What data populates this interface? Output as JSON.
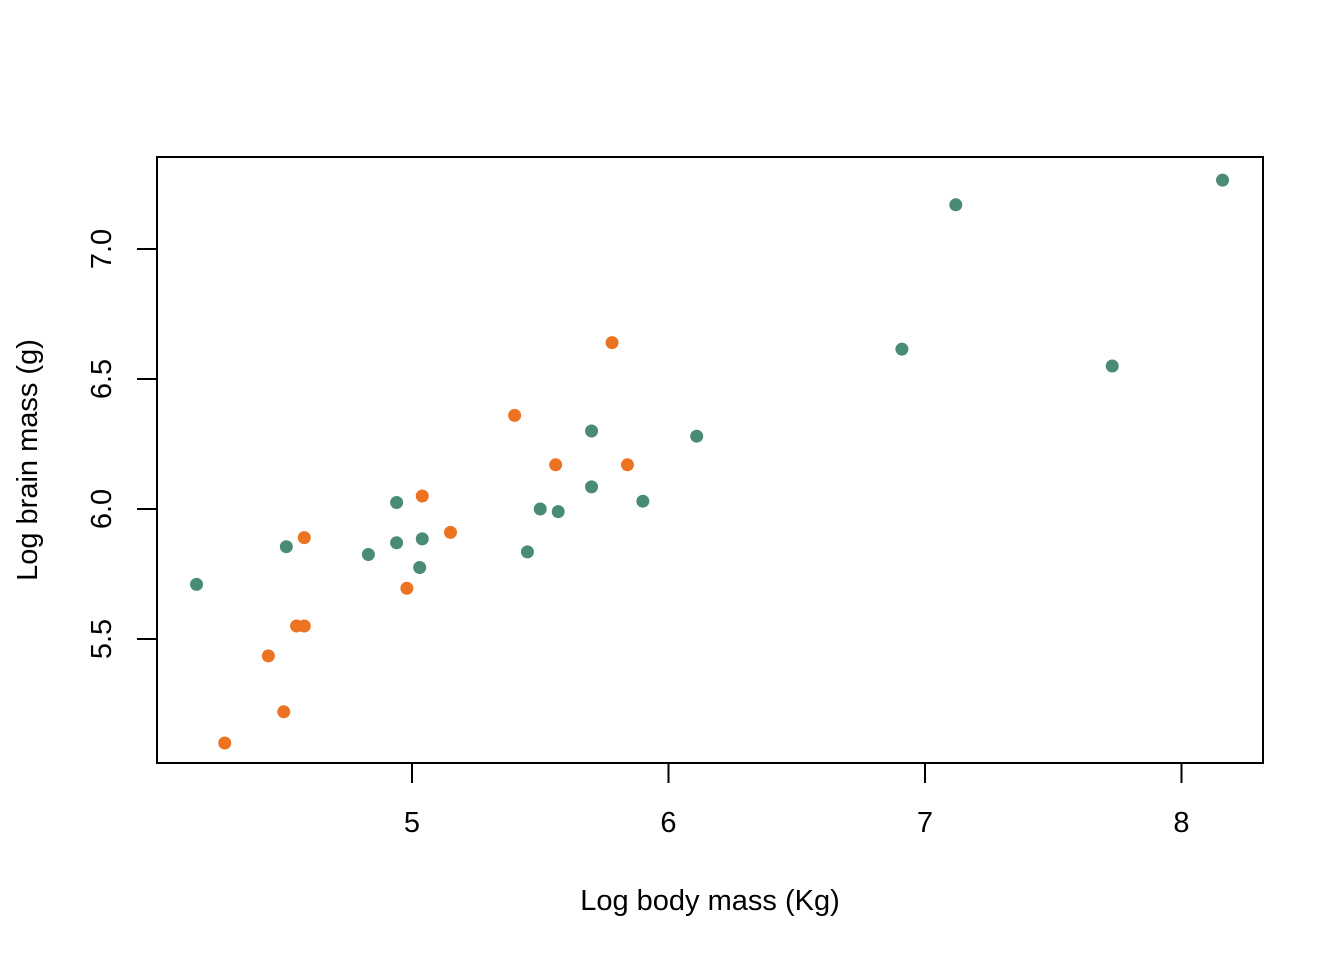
{
  "chart_data": {
    "type": "scatter",
    "title": "",
    "xlabel": "Log body mass (Kg)",
    "ylabel": "Log brain mass (g)",
    "xlim": [
      4.12,
      8.34
    ],
    "ylim": [
      4.95,
      7.3
    ],
    "x_ticks": [
      5,
      6,
      7,
      8
    ],
    "x_tick_labels": [
      "5",
      "6",
      "7",
      "8"
    ],
    "y_ticks": [
      5.5,
      6.0,
      6.5,
      7.0
    ],
    "y_tick_labels": [
      "5.5",
      "6.0",
      "6.5",
      "7.0"
    ],
    "grid": false,
    "legend": false,
    "series": [
      {
        "color": "#4a8b73",
        "points": [
          {
            "x": 4.16,
            "y": 5.71
          },
          {
            "x": 4.51,
            "y": 5.855
          },
          {
            "x": 4.83,
            "y": 5.825
          },
          {
            "x": 4.94,
            "y": 6.025
          },
          {
            "x": 4.94,
            "y": 5.87
          },
          {
            "x": 5.03,
            "y": 5.775
          },
          {
            "x": 5.04,
            "y": 5.885
          },
          {
            "x": 5.45,
            "y": 5.835
          },
          {
            "x": 5.5,
            "y": 6.0
          },
          {
            "x": 5.57,
            "y": 5.99
          },
          {
            "x": 5.7,
            "y": 6.3
          },
          {
            "x": 5.7,
            "y": 6.085
          },
          {
            "x": 5.9,
            "y": 6.03
          },
          {
            "x": 6.11,
            "y": 6.28
          },
          {
            "x": 6.91,
            "y": 6.615
          },
          {
            "x": 7.12,
            "y": 7.17
          },
          {
            "x": 7.73,
            "y": 6.55
          },
          {
            "x": 8.16,
            "y": 7.265
          }
        ]
      },
      {
        "color": "#ec7322",
        "points": [
          {
            "x": 4.27,
            "y": 5.1
          },
          {
            "x": 4.44,
            "y": 5.435
          },
          {
            "x": 4.5,
            "y": 5.22
          },
          {
            "x": 4.55,
            "y": 5.55
          },
          {
            "x": 4.58,
            "y": 5.55
          },
          {
            "x": 4.58,
            "y": 5.89
          },
          {
            "x": 4.98,
            "y": 5.695
          },
          {
            "x": 5.04,
            "y": 6.05
          },
          {
            "x": 5.15,
            "y": 5.91
          },
          {
            "x": 5.4,
            "y": 6.36
          },
          {
            "x": 5.56,
            "y": 6.17
          },
          {
            "x": 5.78,
            "y": 6.64
          },
          {
            "x": 5.84,
            "y": 6.17
          }
        ]
      }
    ]
  }
}
